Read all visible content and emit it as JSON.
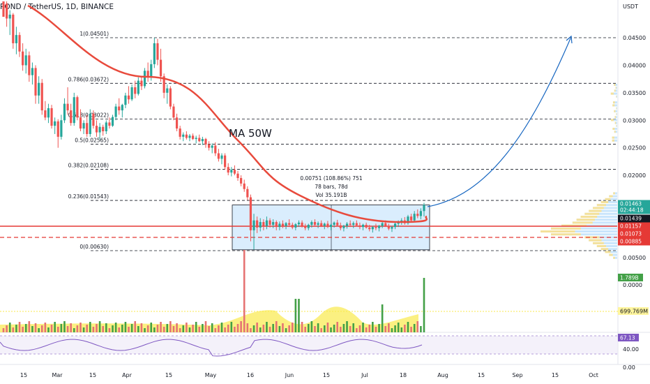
{
  "header": {
    "symbol": "POND / TetherUS, 1D, BINANCE"
  },
  "currency": "USDT",
  "colors": {
    "up": "#26a69a",
    "down": "#ef5350",
    "ma": "#e84a3c",
    "projection": "#1565c0",
    "support": "#e53935",
    "box_fill": "#bbdefb",
    "rsi": "#7e57c2",
    "vol_ma": "#f9e94b",
    "green_tag": "#26a69a",
    "black_tag": "#131722",
    "red_tag": "#e53935",
    "vol_tag": "#fff59d"
  },
  "chart_data": {
    "type": "candlestick",
    "symbol": "POND / TetherUS",
    "interval": "1D",
    "exchange": "BINANCE",
    "y_axis": {
      "min": 0.005,
      "max": 0.045,
      "ticks": [
        "0.04500",
        "0.04000",
        "0.03500",
        "0.03000",
        "0.02500",
        "0.02000",
        "0.01500",
        "0.01000",
        "0.00500"
      ]
    },
    "x_axis": {
      "ticks": [
        "15",
        "Mar",
        "15",
        "Apr",
        "15",
        "May",
        "16",
        "Jun",
        "15",
        "Jul",
        "18",
        "Aug",
        "15",
        "Sep",
        "15",
        "Oct"
      ]
    },
    "fib_levels": [
      {
        "label": "1(0.04501)",
        "price": 0.04501
      },
      {
        "label": "0.786(0.03672)",
        "price": 0.03672
      },
      {
        "label": "0.618(0.03022)",
        "price": 0.03022
      },
      {
        "label": "0.5(0.02565)",
        "price": 0.02565
      },
      {
        "label": "0.382(0.02108)",
        "price": 0.02108
      },
      {
        "label": "0.236(0.01543)",
        "price": 0.01543
      },
      {
        "label": "0(0.00630)",
        "price": 0.0063
      }
    ],
    "moving_average_label": "MA 50W",
    "measure_box": {
      "price_from": 0.0071,
      "price_to": 0.0146,
      "lines": [
        "0.00751 (108.86%) 751",
        "78 bars, 78d",
        "Vol 35.191B"
      ]
    },
    "support_line": 0.01157,
    "dashed_line": 0.00885,
    "price_tags": [
      {
        "text": "0.01463",
        "sub": "02:44:18",
        "price": 0.01463,
        "style": "green"
      },
      {
        "text": "0.01439",
        "price": 0.01439,
        "style": "black"
      },
      {
        "text": "0.01157",
        "price": 0.01157,
        "style": "red"
      },
      {
        "text": "0.01073",
        "price": 0.01073,
        "style": "red"
      },
      {
        "text": "0.00885",
        "price": 0.00885,
        "style": "red"
      }
    ],
    "candles_ohlc": [
      [
        0.054,
        0.0548,
        0.0505,
        0.0512
      ],
      [
        0.0512,
        0.052,
        0.047,
        0.0485
      ],
      [
        0.0485,
        0.05,
        0.0455,
        0.0492
      ],
      [
        0.0492,
        0.0495,
        0.043,
        0.044
      ],
      [
        0.044,
        0.047,
        0.042,
        0.0455
      ],
      [
        0.0455,
        0.046,
        0.0415,
        0.0425
      ],
      [
        0.0425,
        0.044,
        0.039,
        0.04
      ],
      [
        0.04,
        0.043,
        0.0385,
        0.0418
      ],
      [
        0.0418,
        0.0425,
        0.037,
        0.0382
      ],
      [
        0.0382,
        0.0405,
        0.0365,
        0.0395
      ],
      [
        0.0395,
        0.04,
        0.033,
        0.0345
      ],
      [
        0.0345,
        0.038,
        0.033,
        0.0368
      ],
      [
        0.0368,
        0.0375,
        0.031,
        0.0318
      ],
      [
        0.0318,
        0.0335,
        0.03,
        0.0305
      ],
      [
        0.0305,
        0.033,
        0.0295,
        0.0322
      ],
      [
        0.0322,
        0.0328,
        0.0285,
        0.029
      ],
      [
        0.029,
        0.0305,
        0.0275,
        0.0298
      ],
      [
        0.0298,
        0.0302,
        0.025,
        0.027
      ],
      [
        0.027,
        0.031,
        0.0265,
        0.03
      ],
      [
        0.03,
        0.034,
        0.0295,
        0.033
      ],
      [
        0.033,
        0.036,
        0.031,
        0.0318
      ],
      [
        0.0318,
        0.033,
        0.029,
        0.0295
      ],
      [
        0.0295,
        0.035,
        0.029,
        0.0342
      ],
      [
        0.0342,
        0.0345,
        0.03,
        0.0305
      ],
      [
        0.0305,
        0.032,
        0.028,
        0.0285
      ],
      [
        0.0285,
        0.03,
        0.0275,
        0.0295
      ],
      [
        0.0295,
        0.031,
        0.027,
        0.0275
      ],
      [
        0.0275,
        0.032,
        0.027,
        0.0312
      ],
      [
        0.0312,
        0.0318,
        0.0285,
        0.029
      ],
      [
        0.029,
        0.03,
        0.027,
        0.0278
      ],
      [
        0.0278,
        0.0295,
        0.0265,
        0.0288
      ],
      [
        0.0288,
        0.0292,
        0.0272,
        0.028
      ],
      [
        0.028,
        0.03,
        0.0275,
        0.0296
      ],
      [
        0.0296,
        0.0305,
        0.0285,
        0.029
      ],
      [
        0.029,
        0.031,
        0.0288,
        0.0306
      ],
      [
        0.0306,
        0.033,
        0.03,
        0.0325
      ],
      [
        0.0325,
        0.034,
        0.031,
        0.0318
      ],
      [
        0.0318,
        0.033,
        0.0305,
        0.0328
      ],
      [
        0.0328,
        0.035,
        0.0322,
        0.0345
      ],
      [
        0.0345,
        0.0362,
        0.033,
        0.0338
      ],
      [
        0.0338,
        0.0365,
        0.0335,
        0.036
      ],
      [
        0.036,
        0.0372,
        0.034,
        0.0348
      ],
      [
        0.0348,
        0.0378,
        0.0345,
        0.0372
      ],
      [
        0.0372,
        0.038,
        0.0355,
        0.0362
      ],
      [
        0.0362,
        0.0395,
        0.0358,
        0.039
      ],
      [
        0.039,
        0.0405,
        0.037,
        0.0378
      ],
      [
        0.0378,
        0.041,
        0.0372,
        0.0402
      ],
      [
        0.0402,
        0.045,
        0.0395,
        0.044
      ],
      [
        0.044,
        0.0448,
        0.04,
        0.041
      ],
      [
        0.041,
        0.043,
        0.037,
        0.038
      ],
      [
        0.038,
        0.0385,
        0.034,
        0.035
      ],
      [
        0.035,
        0.0365,
        0.033,
        0.0358
      ],
      [
        0.0358,
        0.0362,
        0.032,
        0.0325
      ],
      [
        0.0325,
        0.033,
        0.03,
        0.0305
      ],
      [
        0.0305,
        0.0312,
        0.028,
        0.0285
      ],
      [
        0.0285,
        0.029,
        0.0265,
        0.027
      ],
      [
        0.027,
        0.0278,
        0.0262,
        0.0274
      ],
      [
        0.0274,
        0.028,
        0.0265,
        0.0268
      ],
      [
        0.0268,
        0.0275,
        0.0262,
        0.0272
      ],
      [
        0.0272,
        0.0276,
        0.0264,
        0.0266
      ],
      [
        0.0266,
        0.0272,
        0.0258,
        0.0268
      ],
      [
        0.0268,
        0.0274,
        0.026,
        0.0262
      ],
      [
        0.0262,
        0.027,
        0.0255,
        0.0266
      ],
      [
        0.0266,
        0.0268,
        0.025,
        0.0256
      ],
      [
        0.0256,
        0.0262,
        0.0245,
        0.025
      ],
      [
        0.025,
        0.0258,
        0.024,
        0.0254
      ],
      [
        0.0254,
        0.026,
        0.0235,
        0.024
      ],
      [
        0.024,
        0.0248,
        0.0225,
        0.023
      ],
      [
        0.023,
        0.024,
        0.022,
        0.0236
      ],
      [
        0.0236,
        0.024,
        0.021,
        0.0215
      ],
      [
        0.0215,
        0.0222,
        0.02,
        0.0205
      ],
      [
        0.0205,
        0.0215,
        0.0198,
        0.021
      ],
      [
        0.021,
        0.0218,
        0.02,
        0.0203
      ],
      [
        0.0203,
        0.0208,
        0.019,
        0.0195
      ],
      [
        0.0195,
        0.02,
        0.018,
        0.0185
      ],
      [
        0.0185,
        0.0192,
        0.017,
        0.0175
      ],
      [
        0.0175,
        0.018,
        0.0155,
        0.016
      ],
      [
        0.016,
        0.0165,
        0.008,
        0.01
      ],
      [
        0.01,
        0.013,
        0.0065,
        0.0118
      ],
      [
        0.0118,
        0.0125,
        0.0095,
        0.0105
      ],
      [
        0.0105,
        0.0122,
        0.0098,
        0.0115
      ],
      [
        0.0115,
        0.012,
        0.01,
        0.0108
      ],
      [
        0.0108,
        0.0125,
        0.0102,
        0.0118
      ],
      [
        0.0118,
        0.0122,
        0.0105,
        0.011
      ],
      [
        0.011,
        0.012,
        0.0104,
        0.0115
      ],
      [
        0.0115,
        0.0118,
        0.01,
        0.0106
      ],
      [
        0.0106,
        0.0116,
        0.01,
        0.0112
      ],
      [
        0.0112,
        0.0118,
        0.0104,
        0.0108
      ],
      [
        0.0108,
        0.0115,
        0.0102,
        0.0113
      ],
      [
        0.0113,
        0.012,
        0.0106,
        0.011
      ],
      [
        0.011,
        0.0114,
        0.0102,
        0.0105
      ],
      [
        0.0105,
        0.0113,
        0.01,
        0.0111
      ],
      [
        0.0111,
        0.0118,
        0.0106,
        0.0114
      ],
      [
        0.0114,
        0.0118,
        0.0105,
        0.0108
      ],
      [
        0.0108,
        0.0112,
        0.01,
        0.0104
      ],
      [
        0.0104,
        0.0112,
        0.01,
        0.011
      ],
      [
        0.011,
        0.0118,
        0.0105,
        0.0115
      ],
      [
        0.0115,
        0.012,
        0.0108,
        0.011
      ],
      [
        0.011,
        0.0116,
        0.0104,
        0.0113
      ],
      [
        0.0113,
        0.0118,
        0.0106,
        0.0108
      ],
      [
        0.0108,
        0.0114,
        0.0102,
        0.0112
      ],
      [
        0.0112,
        0.0117,
        0.0104,
        0.0106
      ],
      [
        0.0106,
        0.0112,
        0.01,
        0.011
      ],
      [
        0.011,
        0.0116,
        0.0105,
        0.0114
      ],
      [
        0.0114,
        0.0119,
        0.0107,
        0.0109
      ],
      [
        0.0109,
        0.0114,
        0.01,
        0.0104
      ],
      [
        0.0104,
        0.011,
        0.0098,
        0.0108
      ],
      [
        0.0108,
        0.0115,
        0.0103,
        0.0112
      ],
      [
        0.0112,
        0.0118,
        0.0106,
        0.011
      ],
      [
        0.011,
        0.0116,
        0.0104,
        0.0113
      ],
      [
        0.0113,
        0.0118,
        0.0107,
        0.0109
      ],
      [
        0.0109,
        0.0114,
        0.0102,
        0.0106
      ],
      [
        0.0106,
        0.0112,
        0.01,
        0.011
      ],
      [
        0.011,
        0.0114,
        0.0103,
        0.0105
      ],
      [
        0.0105,
        0.011,
        0.0098,
        0.0102
      ],
      [
        0.0102,
        0.0108,
        0.0096,
        0.0106
      ],
      [
        0.0106,
        0.0112,
        0.01,
        0.0104
      ],
      [
        0.0104,
        0.011,
        0.0098,
        0.0108
      ],
      [
        0.0108,
        0.0116,
        0.0104,
        0.0113
      ],
      [
        0.0113,
        0.0118,
        0.0106,
        0.0108
      ],
      [
        0.0108,
        0.0112,
        0.01,
        0.0103
      ],
      [
        0.0103,
        0.0108,
        0.0097,
        0.0106
      ],
      [
        0.0106,
        0.0114,
        0.0102,
        0.0112
      ],
      [
        0.0112,
        0.0118,
        0.0106,
        0.0115
      ],
      [
        0.0115,
        0.0122,
        0.011,
        0.0118
      ],
      [
        0.0118,
        0.0124,
        0.011,
        0.0113
      ],
      [
        0.0113,
        0.0128,
        0.011,
        0.0125
      ],
      [
        0.0125,
        0.013,
        0.0115,
        0.0118
      ],
      [
        0.0118,
        0.0135,
        0.0116,
        0.013
      ],
      [
        0.013,
        0.0138,
        0.0122,
        0.0126
      ],
      [
        0.0126,
        0.014,
        0.012,
        0.0135
      ],
      [
        0.0135,
        0.015,
        0.0125,
        0.0146
      ]
    ],
    "volume_label": "1.789B",
    "volume_ma_label": "699.769M",
    "volume_axis_ticks": [
      "0.0000"
    ],
    "rsi_value": "67.13",
    "rsi_axis_ticks": [
      "40.00",
      "0.00"
    ]
  }
}
